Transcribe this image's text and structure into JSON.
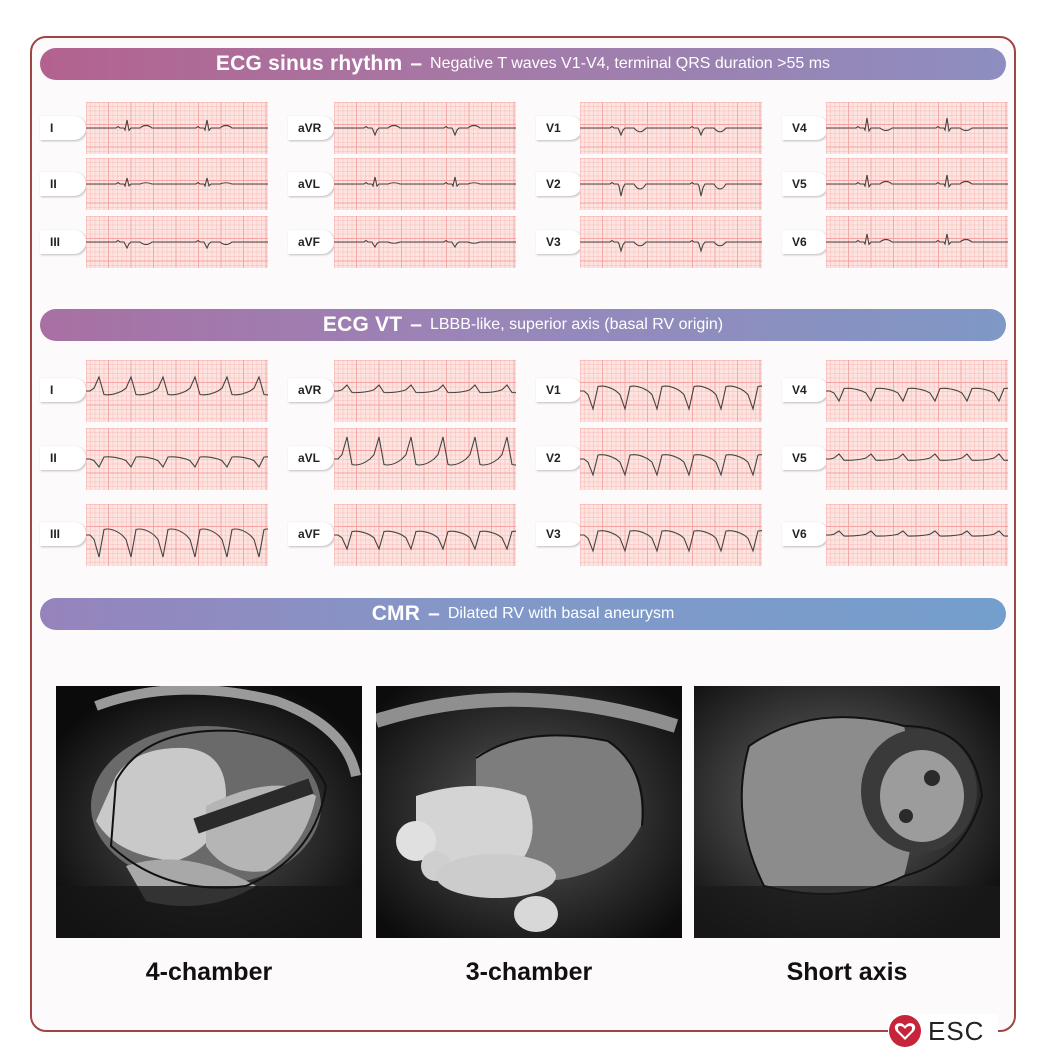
{
  "sections": {
    "sinus": {
      "title": "ECG sinus rhythm",
      "dash": "–",
      "subtitle": "Negative T waves V1-V4, terminal QRS duration >55 ms"
    },
    "vt": {
      "title": "ECG VT",
      "dash": "–",
      "subtitle": "LBBB-like, superior axis (basal RV origin)"
    },
    "cmr": {
      "title": "CMR",
      "dash": "–",
      "subtitle": "Dilated RV with basal aneurysm"
    }
  },
  "sinus_leads": [
    "I",
    "II",
    "III",
    "aVR",
    "aVL",
    "aVF",
    "V1",
    "V2",
    "V3",
    "V4",
    "V5",
    "V6"
  ],
  "vt_leads": [
    "I",
    "II",
    "III",
    "aVR",
    "aVL",
    "aVF",
    "V1",
    "V2",
    "V3",
    "V4",
    "V5",
    "V6"
  ],
  "views": [
    "4-chamber",
    "3-chamber",
    "Short axis"
  ],
  "logo": {
    "text": "ESC"
  },
  "colors": {
    "frame": "#a04545",
    "ecg_grid": "#f3a3a3",
    "ecg_bg": "#fde4e0",
    "trace": "#444444"
  }
}
